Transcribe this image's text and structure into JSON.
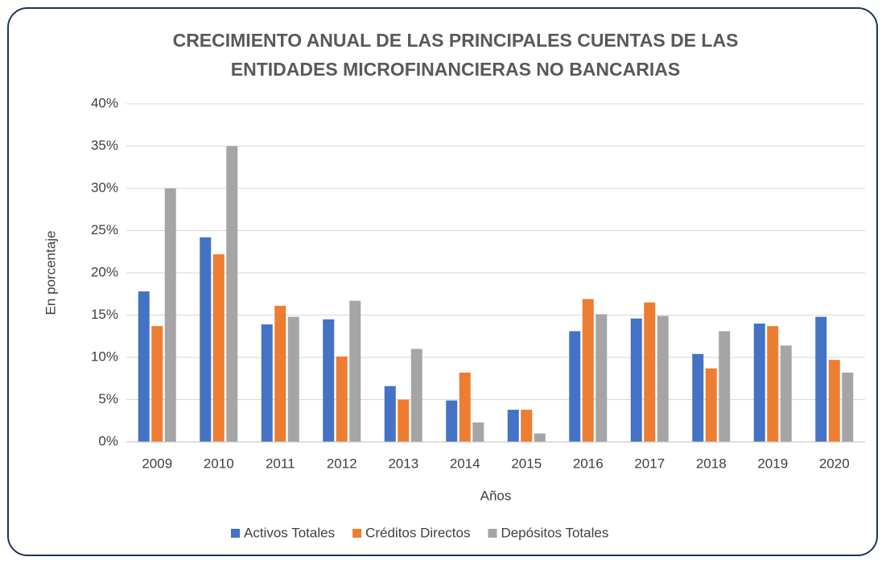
{
  "chart_data": {
    "type": "bar",
    "title": [
      "CRECIMIENTO ANUAL DE LAS PRINCIPALES CUENTAS DE LAS",
      "ENTIDADES MICROFINANCIERAS NO BANCARIAS"
    ],
    "x_label": "Años",
    "y_label": "En porcentaje",
    "categories": [
      "2009",
      "2010",
      "2011",
      "2012",
      "2013",
      "2014",
      "2015",
      "2016",
      "2017",
      "2018",
      "2019",
      "2020"
    ],
    "series": [
      {
        "name": "Activos Totales",
        "color": "#4472c4",
        "values": [
          17.8,
          24.2,
          13.9,
          14.5,
          6.6,
          4.9,
          3.8,
          13.1,
          14.6,
          10.4,
          14.0,
          14.8
        ]
      },
      {
        "name": "Créditos Directos",
        "color": "#ed7d31",
        "values": [
          13.7,
          22.2,
          16.1,
          10.1,
          5.0,
          8.2,
          3.8,
          16.9,
          16.5,
          8.7,
          13.7,
          9.7
        ]
      },
      {
        "name": "Depósitos Totales",
        "color": "#a5a5a5",
        "values": [
          30.0,
          35.0,
          14.8,
          16.7,
          11.0,
          2.3,
          1.0,
          15.1,
          14.9,
          13.1,
          11.4,
          8.2
        ]
      }
    ],
    "ylim": [
      0,
      40
    ],
    "yticks": [
      {
        "value": 0,
        "label": "0%"
      },
      {
        "value": 5,
        "label": "5%"
      },
      {
        "value": 10,
        "label": "10%"
      },
      {
        "value": 15,
        "label": "15%"
      },
      {
        "value": 20,
        "label": "20%"
      },
      {
        "value": 25,
        "label": "25%"
      },
      {
        "value": 30,
        "label": "30%"
      },
      {
        "value": 35,
        "label": "35%"
      },
      {
        "value": 40,
        "label": "40%"
      }
    ],
    "grid": true,
    "legend": "bottom"
  }
}
